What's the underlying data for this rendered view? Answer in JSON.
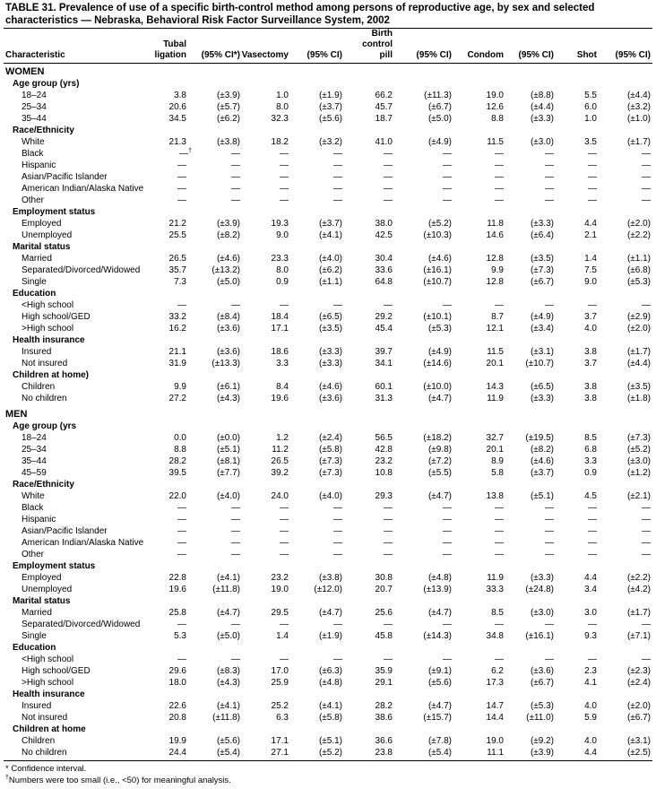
{
  "title": "TABLE 31. Prevalence of use of a specific birth-control method among persons of reproductive age, by sex and selected characteristics — Nebraska, Behavioral Risk Factor Surveillance System, 2002",
  "headers": [
    [
      "Characteristic"
    ],
    [
      "Tubal",
      "ligation"
    ],
    [
      "(95% CI*)"
    ],
    [
      "Vasectomy"
    ],
    [
      "(95% CI)"
    ],
    [
      "Birth",
      "control",
      "pill"
    ],
    [
      "(95% CI)"
    ],
    [
      "Condom"
    ],
    [
      "(95% CI)"
    ],
    [
      "Shot"
    ],
    [
      "(95% CI)"
    ]
  ],
  "sections": [
    {
      "label": "WOMEN",
      "groups": [
        {
          "label": "Age group (yrs)",
          "rows": [
            {
              "label": "18–24",
              "cells": [
                "3.8",
                "(±3.9)",
                "1.0",
                "(±1.9)",
                "66.2",
                "(±11.3)",
                "19.0",
                "(±8.8)",
                "5.5",
                "(±4.4)"
              ]
            },
            {
              "label": "25–34",
              "cells": [
                "20.6",
                "(±5.7)",
                "8.0",
                "(±3.7)",
                "45.7",
                "(±6.7)",
                "12.6",
                "(±4.4)",
                "6.0",
                "(±3.2)"
              ]
            },
            {
              "label": "35–44",
              "cells": [
                "34.5",
                "(±6.2)",
                "32.3",
                "(±5.6)",
                "18.7",
                "(±5.0)",
                "8.8",
                "(±3.3)",
                "1.0",
                "(±1.0)"
              ]
            }
          ]
        },
        {
          "label": "Race/Ethnicity",
          "rows": [
            {
              "label": "White",
              "cells": [
                "21.3",
                "(±3.8)",
                "18.2",
                "(±3.2)",
                "41.0",
                "(±4.9)",
                "11.5",
                "(±3.0)",
                "3.5",
                "(±1.7)"
              ]
            },
            {
              "label": "Black",
              "sup": "†",
              "cells": [
                "—",
                "—",
                "—",
                "—",
                "—",
                "—",
                "—",
                "—",
                "—",
                "—"
              ]
            },
            {
              "label": "Hispanic",
              "cells": [
                "—",
                "—",
                "—",
                "—",
                "—",
                "—",
                "—",
                "—",
                "—",
                "—"
              ]
            },
            {
              "label": "Asian/Pacific Islander",
              "cells": [
                "—",
                "—",
                "—",
                "—",
                "—",
                "—",
                "—",
                "—",
                "—",
                "—"
              ]
            },
            {
              "label": "American Indian/Alaska Native",
              "cells": [
                "—",
                "—",
                "—",
                "—",
                "—",
                "—",
                "—",
                "—",
                "—",
                "—"
              ]
            },
            {
              "label": "Other",
              "cells": [
                "—",
                "—",
                "—",
                "—",
                "—",
                "—",
                "—",
                "—",
                "—",
                "—"
              ]
            }
          ]
        },
        {
          "label": "Employment status",
          "rows": [
            {
              "label": "Employed",
              "cells": [
                "21.2",
                "(±3.9)",
                "19.3",
                "(±3.7)",
                "38.0",
                "(±5.2)",
                "11.8",
                "(±3.3)",
                "4.4",
                "(±2.0)"
              ]
            },
            {
              "label": "Unemployed",
              "cells": [
                "25.5",
                "(±8.2)",
                "9.0",
                "(±4.1)",
                "42.5",
                "(±10.3)",
                "14.6",
                "(±6.4)",
                "2.1",
                "(±2.2)"
              ]
            }
          ]
        },
        {
          "label": "Marital status",
          "rows": [
            {
              "label": "Married",
              "cells": [
                "26.5",
                "(±4.6)",
                "23.3",
                "(±4.0)",
                "30.4",
                "(±4.6)",
                "12.8",
                "(±3.5)",
                "1.4",
                "(±1.1)"
              ]
            },
            {
              "label": "Separated/Divorced/Widowed",
              "cells": [
                "35.7",
                "(±13.2)",
                "8.0",
                "(±6.2)",
                "33.6",
                "(±16.1)",
                "9.9",
                "(±7.3)",
                "7.5",
                "(±6.8)"
              ]
            },
            {
              "label": "Single",
              "cells": [
                "7.3",
                "(±5.0)",
                "0.9",
                "(±1.1)",
                "64.8",
                "(±10.7)",
                "12.8",
                "(±6.7)",
                "9.0",
                "(±5.3)"
              ]
            }
          ]
        },
        {
          "label": "Education",
          "rows": [
            {
              "label": "<High school",
              "cells": [
                "—",
                "—",
                "—",
                "—",
                "—",
                "—",
                "—",
                "—",
                "—",
                "—"
              ]
            },
            {
              "label": "High school/GED",
              "cells": [
                "33.2",
                "(±8.4)",
                "18.4",
                "(±6.5)",
                "29.2",
                "(±10.1)",
                "8.7",
                "(±4.9)",
                "3.7",
                "(±2.9)"
              ]
            },
            {
              "label": ">High school",
              "cells": [
                "16.2",
                "(±3.6)",
                "17.1",
                "(±3.5)",
                "45.4",
                "(±5.3)",
                "12.1",
                "(±3.4)",
                "4.0",
                "(±2.0)"
              ]
            }
          ]
        },
        {
          "label": "Health insurance",
          "rows": [
            {
              "label": "Insured",
              "cells": [
                "21.1",
                "(±3.6)",
                "18.6",
                "(±3.3)",
                "39.7",
                "(±4.9)",
                "11.5",
                "(±3.1)",
                "3.8",
                "(±1.7)"
              ]
            },
            {
              "label": "Not insured",
              "cells": [
                "31.9",
                "(±13.3)",
                "3.3",
                "(±3.3)",
                "34.1",
                "(±14.6)",
                "20.1",
                "(±10.7)",
                "3.7",
                "(±4.4)"
              ]
            }
          ]
        },
        {
          "label": "Children at home)",
          "rows": [
            {
              "label": "Children",
              "cells": [
                "9.9",
                "(±6.1)",
                "8.4",
                "(±4.6)",
                "60.1",
                "(±10.0)",
                "14.3",
                "(±6.5)",
                "3.8",
                "(±3.5)"
              ]
            },
            {
              "label": "No children",
              "cells": [
                "27.2",
                "(±4.3)",
                "19.6",
                "(±3.6)",
                "31.3",
                "(±4.7)",
                "11.9",
                "(±3.3)",
                "3.8",
                "(±1.8)"
              ]
            }
          ]
        }
      ]
    },
    {
      "label": "MEN",
      "groups": [
        {
          "label": "Age group (yrs",
          "rows": [
            {
              "label": "18–24",
              "cells": [
                "0.0",
                "(±0.0)",
                "1.2",
                "(±2.4)",
                "56.5",
                "(±18.2)",
                "32.7",
                "(±19.5)",
                "8.5",
                "(±7.3)"
              ]
            },
            {
              "label": "25–34",
              "cells": [
                "8.8",
                "(±5.1)",
                "11.2",
                "(±5.8)",
                "42.8",
                "(±9.8)",
                "20.1",
                "(±8.2)",
                "6.8",
                "(±5.2)"
              ]
            },
            {
              "label": "35–44",
              "cells": [
                "28.2",
                "(±8.1)",
                "26.5",
                "(±7.3)",
                "23.2",
                "(±7.2)",
                "8.9",
                "(±4.6)",
                "3.3",
                "(±3.0)"
              ]
            },
            {
              "label": "45–59",
              "cells": [
                "39.5",
                "(±7.7)",
                "39.2",
                "(±7.3)",
                "10.8",
                "(±5.5)",
                "5.8",
                "(±3.7)",
                "0.9",
                "(±1.2)"
              ]
            }
          ]
        },
        {
          "label": "Race/Ethnicity",
          "rows": [
            {
              "label": "White",
              "cells": [
                "22.0",
                "(±4.0)",
                "24.0",
                "(±4.0)",
                "29.3",
                "(±4.7)",
                "13.8",
                "(±5.1)",
                "4.5",
                "(±2.1)"
              ]
            },
            {
              "label": "Black",
              "cells": [
                "—",
                "—",
                "—",
                "—",
                "—",
                "—",
                "—",
                "—",
                "—",
                "—"
              ]
            },
            {
              "label": "Hispanic",
              "cells": [
                "—",
                "—",
                "—",
                "—",
                "—",
                "—",
                "—",
                "—",
                "—",
                "—"
              ]
            },
            {
              "label": "Asian/Pacific Islander",
              "cells": [
                "—",
                "—",
                "—",
                "—",
                "—",
                "—",
                "—",
                "—",
                "—",
                "—"
              ]
            },
            {
              "label": "American Indian/Alaska Native",
              "cells": [
                "—",
                "—",
                "—",
                "—",
                "—",
                "—",
                "—",
                "—",
                "—",
                "—"
              ]
            },
            {
              "label": "Other",
              "cells": [
                "—",
                "—",
                "—",
                "—",
                "—",
                "—",
                "—",
                "—",
                "—",
                "—"
              ]
            }
          ]
        },
        {
          "label": "Employment status",
          "rows": [
            {
              "label": "Employed",
              "cells": [
                "22.8",
                "(±4.1)",
                "23.2",
                "(±3.8)",
                "30.8",
                "(±4.8)",
                "11.9",
                "(±3.3)",
                "4.4",
                "(±2.2)"
              ]
            },
            {
              "label": "Unemployed",
              "cells": [
                "19.6",
                "(±11.8)",
                "19.0",
                "(±12.0)",
                "20.7",
                "(±13.9)",
                "33.3",
                "(±24.8)",
                "3.4",
                "(±4.2)"
              ]
            }
          ]
        },
        {
          "label": "Marital status",
          "rows": [
            {
              "label": "Married",
              "cells": [
                "25.8",
                "(±4.7)",
                "29.5",
                "(±4.7)",
                "25.6",
                "(±4.7)",
                "8.5",
                "(±3.0)",
                "3.0",
                "(±1.7)"
              ]
            },
            {
              "label": "Separated/Divorced/Widowed",
              "cells": [
                "—",
                "—",
                "—",
                "—",
                "—",
                "—",
                "—",
                "—",
                "—",
                "—"
              ]
            },
            {
              "label": "Single",
              "cells": [
                "5.3",
                "(±5.0)",
                "1.4",
                "(±1.9)",
                "45.8",
                "(±14.3)",
                "34.8",
                "(±16.1)",
                "9.3",
                "(±7.1)"
              ]
            }
          ]
        },
        {
          "label": "Education",
          "rows": [
            {
              "label": "<High school",
              "cells": [
                "—",
                "—",
                "—",
                "—",
                "—",
                "—",
                "—",
                "—",
                "—",
                "—"
              ]
            },
            {
              "label": "High school/GED",
              "cells": [
                "29.6",
                "(±8.3)",
                "17.0",
                "(±6.3)",
                "35.9",
                "(±9.1)",
                "6.2",
                "(±3.6)",
                "2.3",
                "(±2.3)"
              ]
            },
            {
              "label": ">High school",
              "cells": [
                "18.0",
                "(±4.3)",
                "25.9",
                "(±4.8)",
                "29.1",
                "(±5.6)",
                "17.3",
                "(±6.7)",
                "4.1",
                "(±2.4)"
              ]
            }
          ]
        },
        {
          "label": "Health insurance",
          "rows": [
            {
              "label": "Insured",
              "cells": [
                "22.6",
                "(±4.1)",
                "25.2",
                "(±4.1)",
                "28.2",
                "(±4.7)",
                "14.7",
                "(±5.3)",
                "4.0",
                "(±2.0)"
              ]
            },
            {
              "label": "Not insured",
              "cells": [
                "20.8",
                "(±11.8)",
                "6.3",
                "(±5.8)",
                "38.6",
                "(±15.7)",
                "14.4",
                "(±11.0)",
                "5.9",
                "(±6.7)"
              ]
            }
          ]
        },
        {
          "label": "Children at home",
          "rows": [
            {
              "label": "Children",
              "cells": [
                "19.9",
                "(±5.6)",
                "17.1",
                "(±5.1)",
                "36.6",
                "(±7.8)",
                "19.0",
                "(±9.2)",
                "4.0",
                "(±3.1)"
              ]
            },
            {
              "label": "No children",
              "cells": [
                "24.4",
                "(±5.4)",
                "27.1",
                "(±5.2)",
                "23.8",
                "(±5.4)",
                "11.1",
                "(±3.9)",
                "4.4",
                "(±2.5)"
              ]
            }
          ]
        }
      ]
    }
  ],
  "footnotes": [
    {
      "text": "* Confidence interval."
    },
    {
      "mark": "†",
      "text": "Numbers were too small (i.e., <50) for meaningful analysis."
    }
  ]
}
